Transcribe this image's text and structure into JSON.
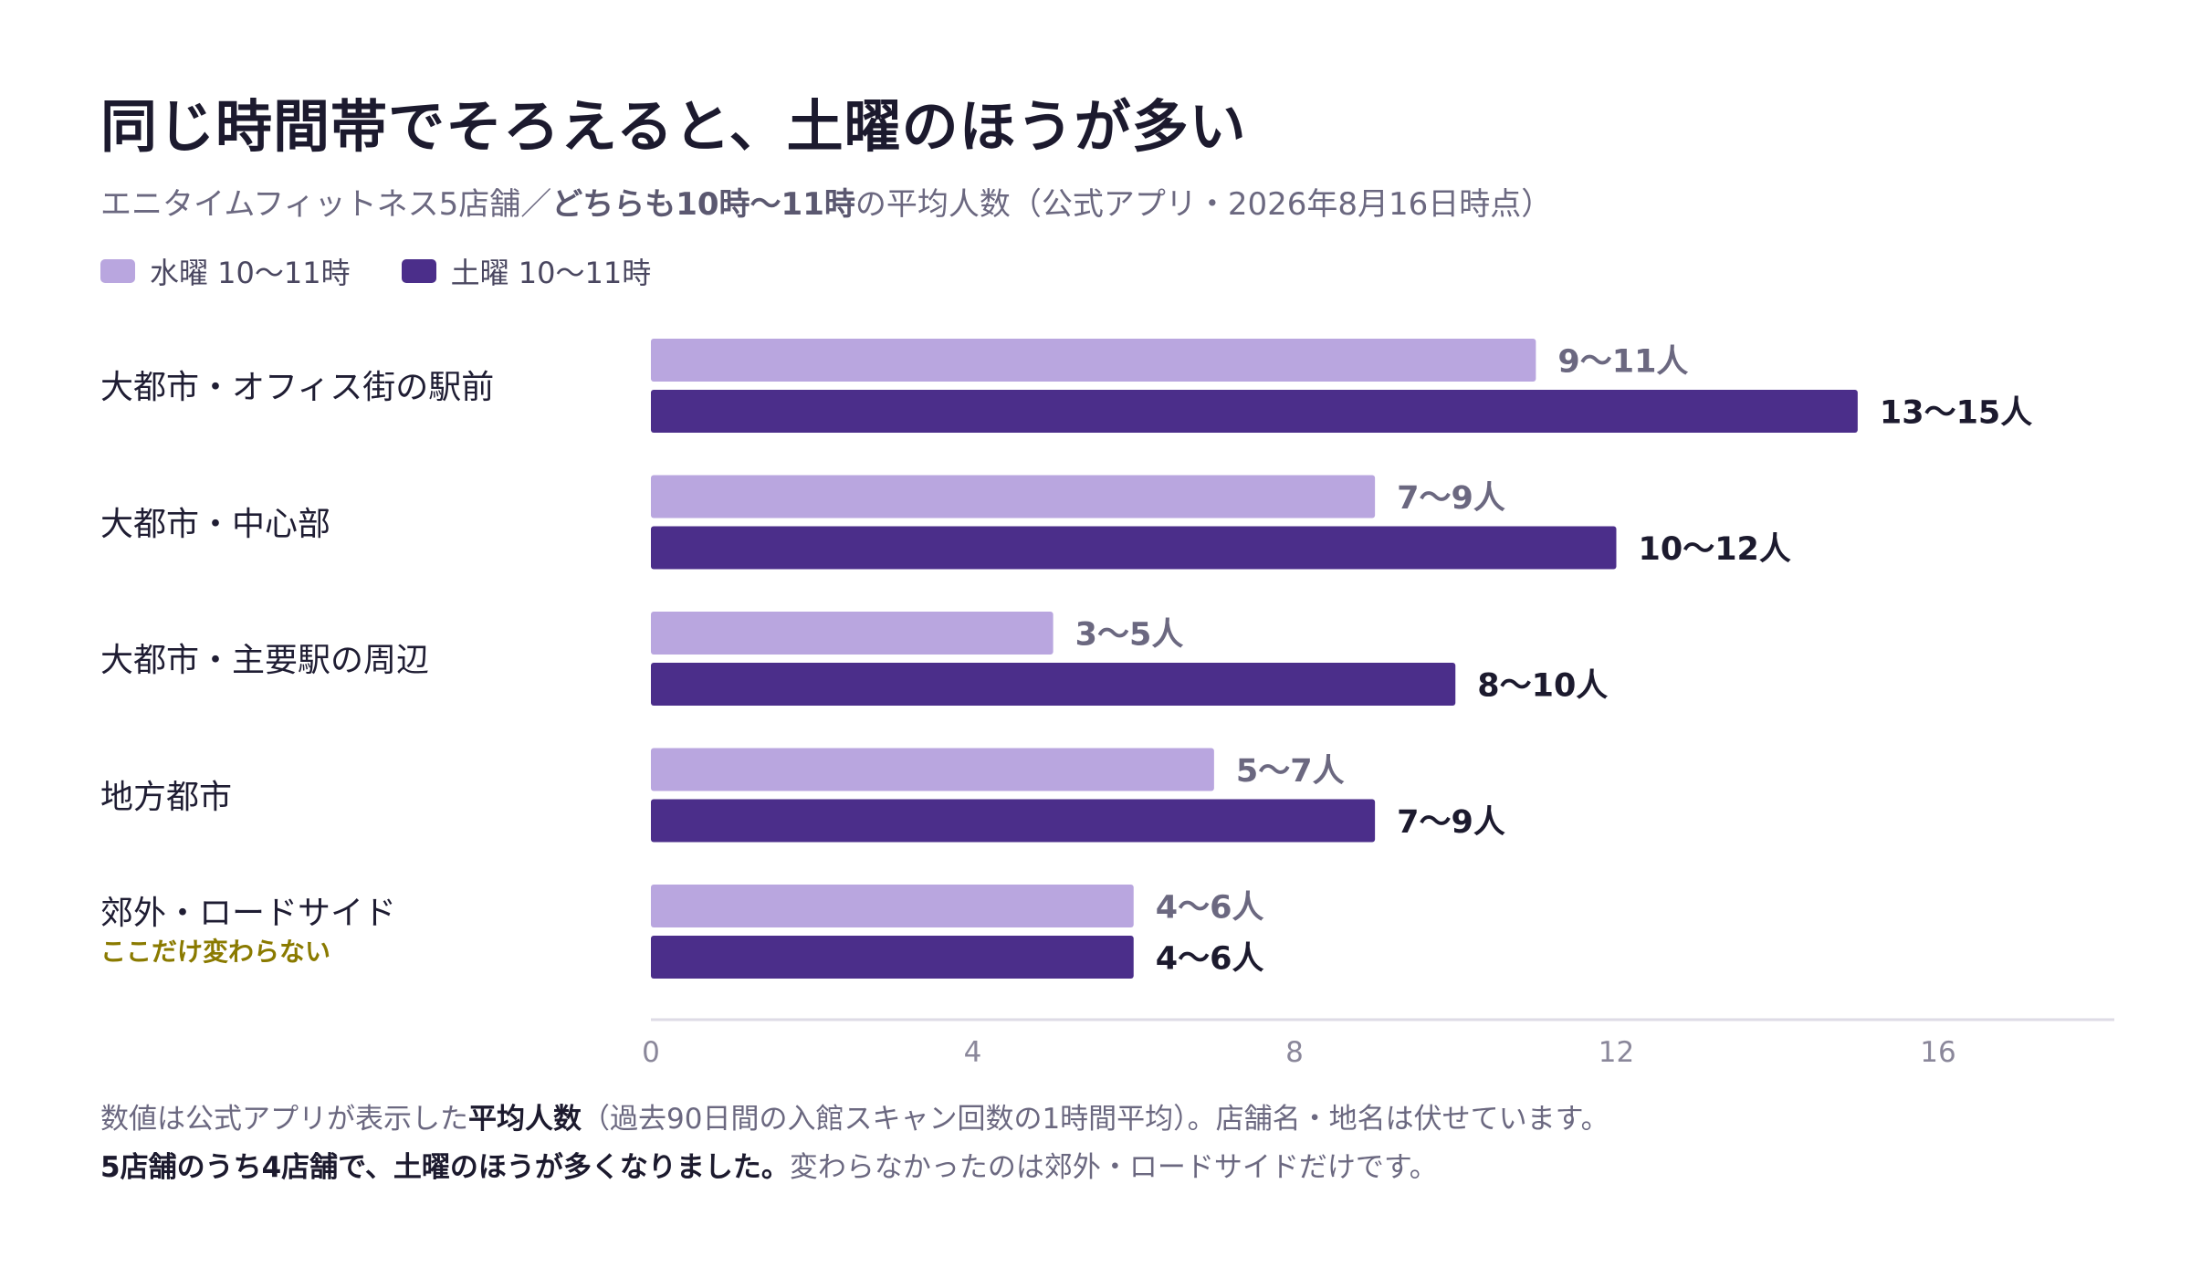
{
  "title": "同じ時間帯でそろえると、土曜のほうが多い",
  "subtitle": {
    "prefix": "エニタイムフィットネス5店舗／",
    "bold": "どちらも10時〜11時",
    "suffix": "の平均人数（公式アプリ・2026年8月16日時点）"
  },
  "colors": {
    "wed": "#b9a6df",
    "sat": "#4b2e8a"
  },
  "chart_data": {
    "type": "bar",
    "orientation": "horizontal",
    "categories": [
      "大都市・オフィス街の駅前",
      "大都市・中心部",
      "大都市・主要駅の周辺",
      "地方都市",
      "郊外・ロードサイド"
    ],
    "category_notes": [
      "",
      "",
      "",
      "",
      "ここだけ変わらない"
    ],
    "series": [
      {
        "name": "水曜 10〜11時",
        "low": [
          9,
          7,
          3,
          5,
          4
        ],
        "high": [
          11,
          9,
          5,
          7,
          6
        ],
        "labels": [
          "9〜11人",
          "7〜9人",
          "3〜5人",
          "5〜7人",
          "4〜6人"
        ]
      },
      {
        "name": "土曜 10〜11時",
        "low": [
          13,
          10,
          8,
          7,
          4
        ],
        "high": [
          15,
          12,
          10,
          9,
          6
        ],
        "labels": [
          "13〜15人",
          "10〜12人",
          "8〜10人",
          "7〜9人",
          "4〜6人"
        ]
      }
    ],
    "xlim": [
      0,
      18
    ],
    "xticks": [
      "0",
      "4",
      "8",
      "12",
      "16"
    ],
    "legend_position": "top-left",
    "grid": false
  },
  "footnote": {
    "line1_prefix": "数値は公式アプリが表示した",
    "line1_bold": "平均人数",
    "line1_suffix": "（過去90日間の入館スキャン回数の1時間平均）。店舗名・地名は伏せています。",
    "line2_bold": "5店舗のうち4店舗で、土曜のほうが多くなりました。",
    "line2_suffix": "変わらなかったのは郊外・ロードサイドだけです。"
  }
}
